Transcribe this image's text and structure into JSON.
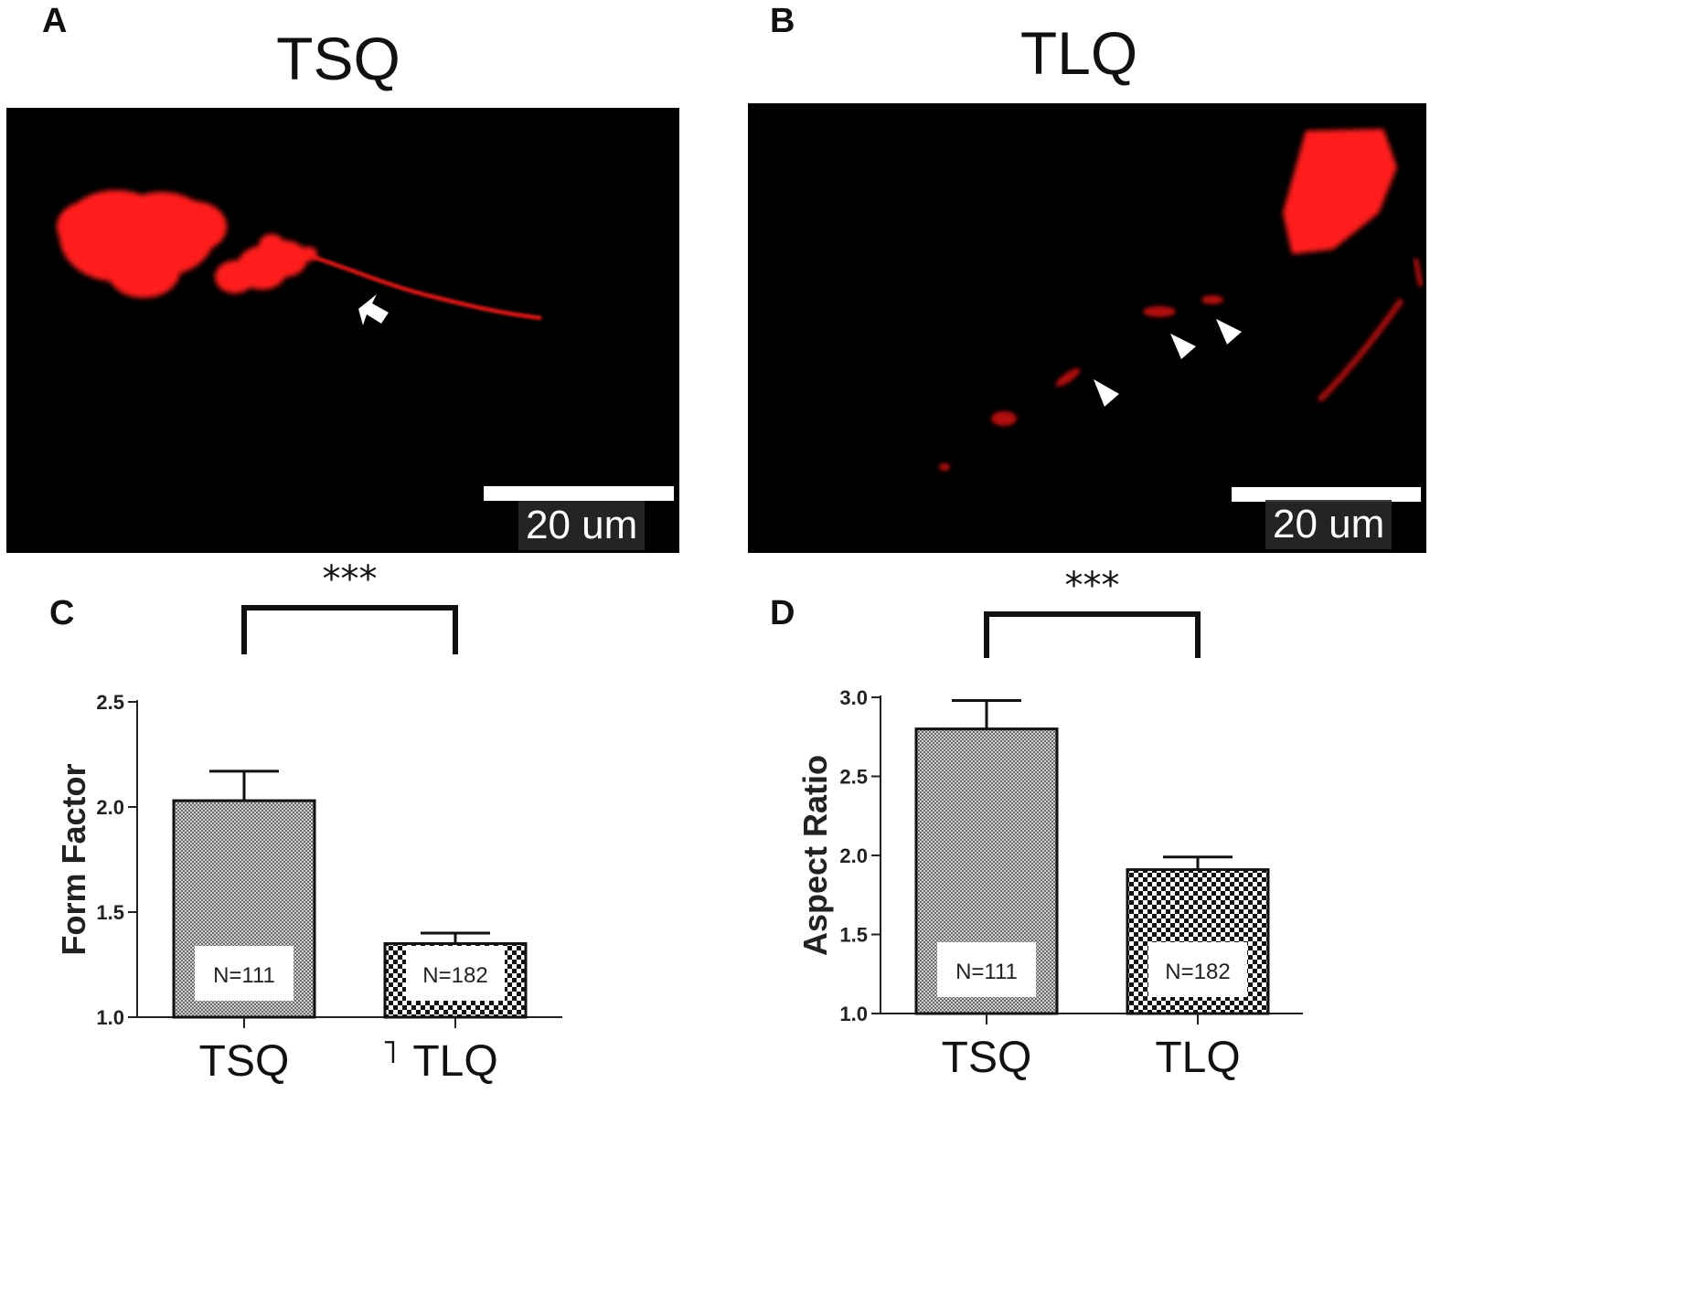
{
  "panels": {
    "a": {
      "letter": "A",
      "title": "TSQ",
      "scale_label": "20 um"
    },
    "b": {
      "letter": "B",
      "title": "TLQ",
      "scale_label": "20 um"
    },
    "c": {
      "letter": "C"
    },
    "d": {
      "letter": "D"
    }
  },
  "colors": {
    "fluorescence": "#ff1a1a",
    "background": "#000000",
    "bar_outline": "#111111"
  },
  "chart_data": [
    {
      "type": "bar",
      "panel": "C",
      "categories": [
        "TSQ",
        "TLQ"
      ],
      "values": [
        2.03,
        1.35
      ],
      "errors": [
        0.14,
        0.05
      ],
      "n_labels": [
        "N=111",
        "N=182"
      ],
      "ylabel": "Form Factor",
      "ylim": [
        1.0,
        2.5
      ],
      "yticks": [
        "1.0",
        "1.5",
        "2.0",
        "2.5"
      ],
      "significance": "***",
      "extra_mark": "˥"
    },
    {
      "type": "bar",
      "panel": "D",
      "categories": [
        "TSQ",
        "TLQ"
      ],
      "values": [
        2.8,
        1.91
      ],
      "errors": [
        0.18,
        0.08
      ],
      "n_labels": [
        "N=111",
        "N=182"
      ],
      "ylabel": "Aspect Ratio",
      "ylim": [
        1.0,
        3.0
      ],
      "yticks": [
        "1.0",
        "1.5",
        "2.0",
        "2.5",
        "3.0"
      ],
      "significance": "***"
    }
  ]
}
